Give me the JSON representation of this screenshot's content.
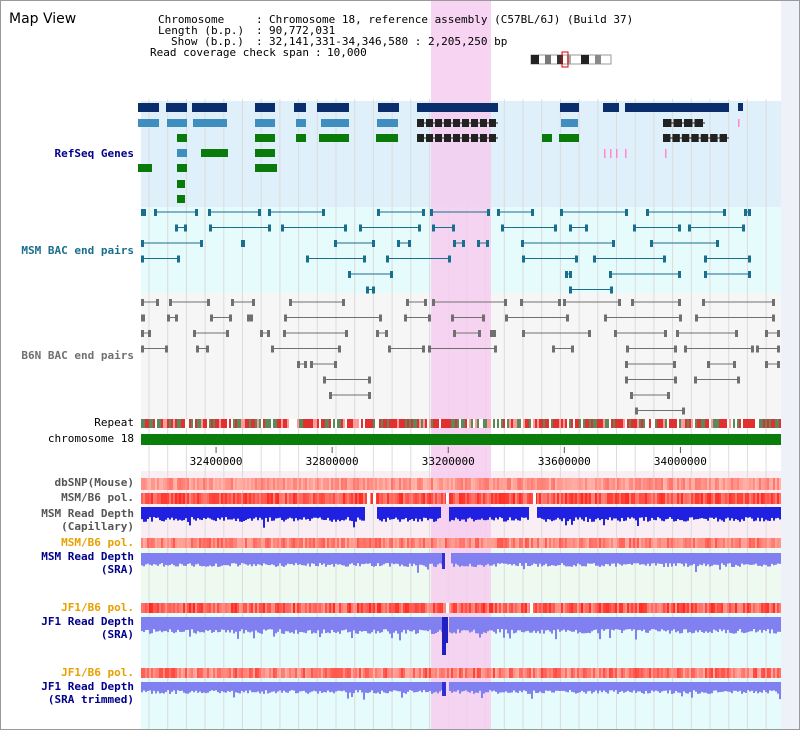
{
  "title": "Map View",
  "info": {
    "chromosome_key": "Chromosome",
    "chromosome_val": "Chromosome 18, reference assembly (C57BL/6J) (Build 37)",
    "length_key": "Length (b.p.)",
    "length_val": "90,772,031",
    "show_key": "Show (b.p.)",
    "show_val": "32,141,331-34,346,580 : 2,205,250 bp",
    "coverage_key": "Read coverage check span",
    "coverage_val": "10,000"
  },
  "tracks": {
    "refseq": "RefSeq Genes",
    "msm_bac": "MSM BAC end pairs",
    "b6n_bac": "B6N BAC end pairs",
    "repeat": "Repeat",
    "chromosome": "chromosome 18",
    "dbsnp": "dbSNP(Mouse)",
    "msm_b6_pol_1": "MSM/B6 pol.",
    "msm_depth_cap_1": "MSM Read Depth",
    "msm_depth_cap_2": "(Capillary)",
    "msm_b6_pol_2": "MSM/B6 pol.",
    "msm_depth_sra_1": "MSM Read Depth",
    "msm_depth_sra_2": "(SRA)",
    "jf1_b6_pol_1": "JF1/B6 pol.",
    "jf1_depth_sra_1": "JF1 Read Depth",
    "jf1_depth_sra_2": "(SRA)",
    "jf1_b6_pol_2": "JF1/B6 pol.",
    "jf1_depth_trim_1": "JF1 Read Depth",
    "jf1_depth_trim_2": "(SRA trimmed)"
  },
  "axis": {
    "ticks": [
      "32400000",
      "32800000",
      "33200000",
      "33600000",
      "34000000"
    ],
    "tick_values": [
      32400000,
      32800000,
      33200000,
      33600000,
      34000000
    ],
    "range": [
      32141331,
      34346580
    ]
  },
  "colors": {
    "refseq_dark": "#0a2d6b",
    "refseq_mid": "#3e8fc0",
    "refseq_green": "#0a7a0a",
    "msm_bac": "#1a6e8e",
    "b6n_bac": "#707070",
    "chromosome_bar": "#0b7d0b",
    "highlight": "#f6cdee",
    "label_blue": "#00008b",
    "label_orange": "#e8a000",
    "label_teal": "#1a6e8e",
    "depth_blue": "#2020e0",
    "depth_light": "#8080f0"
  }
}
